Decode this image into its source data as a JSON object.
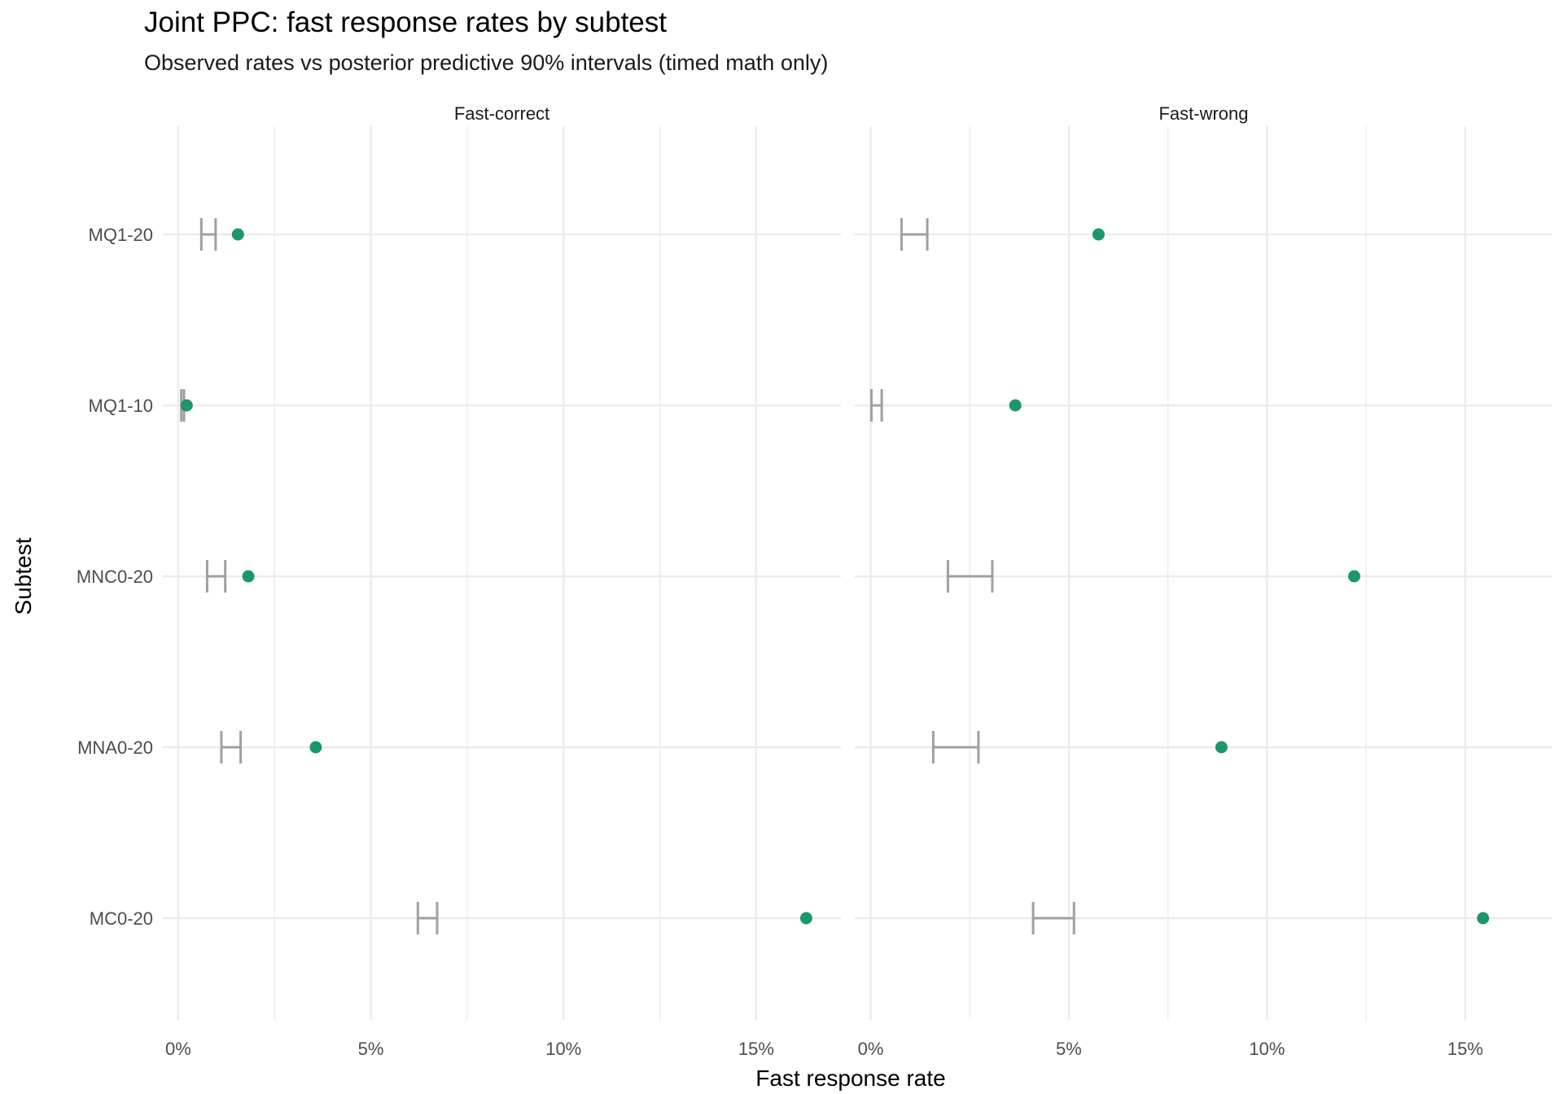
{
  "chart_data": {
    "type": "scatter",
    "title": "Joint PPC: fast response rates by subtest",
    "subtitle": "Observed rates vs posterior predictive 90% intervals (timed math only)",
    "xlabel": "Fast response rate",
    "ylabel": "Subtest",
    "xlim": [
      -0.004,
      0.172
    ],
    "x_ticks": [
      0,
      0.05,
      0.1,
      0.15
    ],
    "x_tick_labels": [
      "0%",
      "5%",
      "10%",
      "15%"
    ],
    "categories": [
      "MQ1-20",
      "MQ1-10",
      "MNC0-20",
      "MNA0-20",
      "MC0-20"
    ],
    "colors": {
      "observed": "#1b9670",
      "interval": "#a0a0a0",
      "grid": "#ebebeb"
    },
    "panels": [
      {
        "label": "Fast-correct",
        "observed": [
          0.0155,
          0.0022,
          0.0182,
          0.0357,
          0.163
        ],
        "interval_lower": [
          0.006,
          0.0008,
          0.0075,
          0.0112,
          0.0622
        ],
        "interval_upper": [
          0.0097,
          0.0015,
          0.0122,
          0.0162,
          0.0672
        ]
      },
      {
        "label": "Fast-wrong",
        "observed": [
          0.0575,
          0.0365,
          0.122,
          0.0885,
          0.1545
        ],
        "interval_lower": [
          0.0078,
          0.0002,
          0.0195,
          0.0158,
          0.041
        ],
        "interval_upper": [
          0.0143,
          0.0028,
          0.0307,
          0.0272,
          0.0513
        ]
      }
    ]
  }
}
